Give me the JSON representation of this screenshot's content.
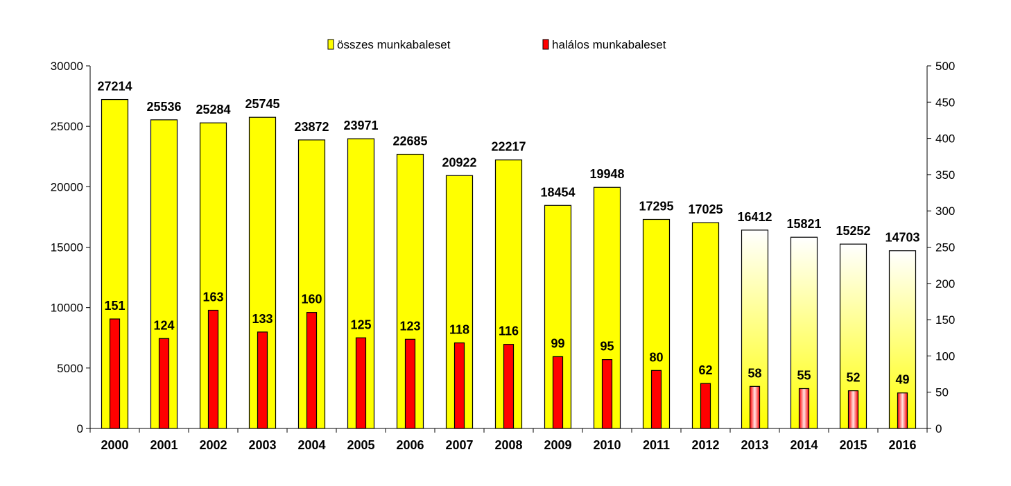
{
  "chart_data": {
    "type": "bar",
    "categories": [
      "2000",
      "2001",
      "2002",
      "2003",
      "2004",
      "2005",
      "2006",
      "2007",
      "2008",
      "2009",
      "2010",
      "2011",
      "2012",
      "2013",
      "2014",
      "2015",
      "2016"
    ],
    "series": [
      {
        "name": "összes munkabaleset",
        "axis": "left",
        "color": "#ffff00",
        "values": [
          27214,
          25536,
          25284,
          25745,
          23872,
          23971,
          22685,
          20922,
          22217,
          18454,
          19948,
          17295,
          17025,
          16412,
          15821,
          15252,
          14703
        ]
      },
      {
        "name": "halálos munkabaleset",
        "axis": "right",
        "color": "#ff0000",
        "values": [
          151,
          124,
          163,
          133,
          160,
          125,
          123,
          118,
          116,
          99,
          95,
          80,
          62,
          58,
          55,
          52,
          49
        ]
      }
    ],
    "y_left": {
      "min": 0,
      "max": 30000,
      "step": 5000
    },
    "y_right": {
      "min": 0,
      "max": 500,
      "step": 50
    },
    "gradient_from_category": "2013",
    "legend_position": "top",
    "grid": false,
    "data_labels": true
  }
}
